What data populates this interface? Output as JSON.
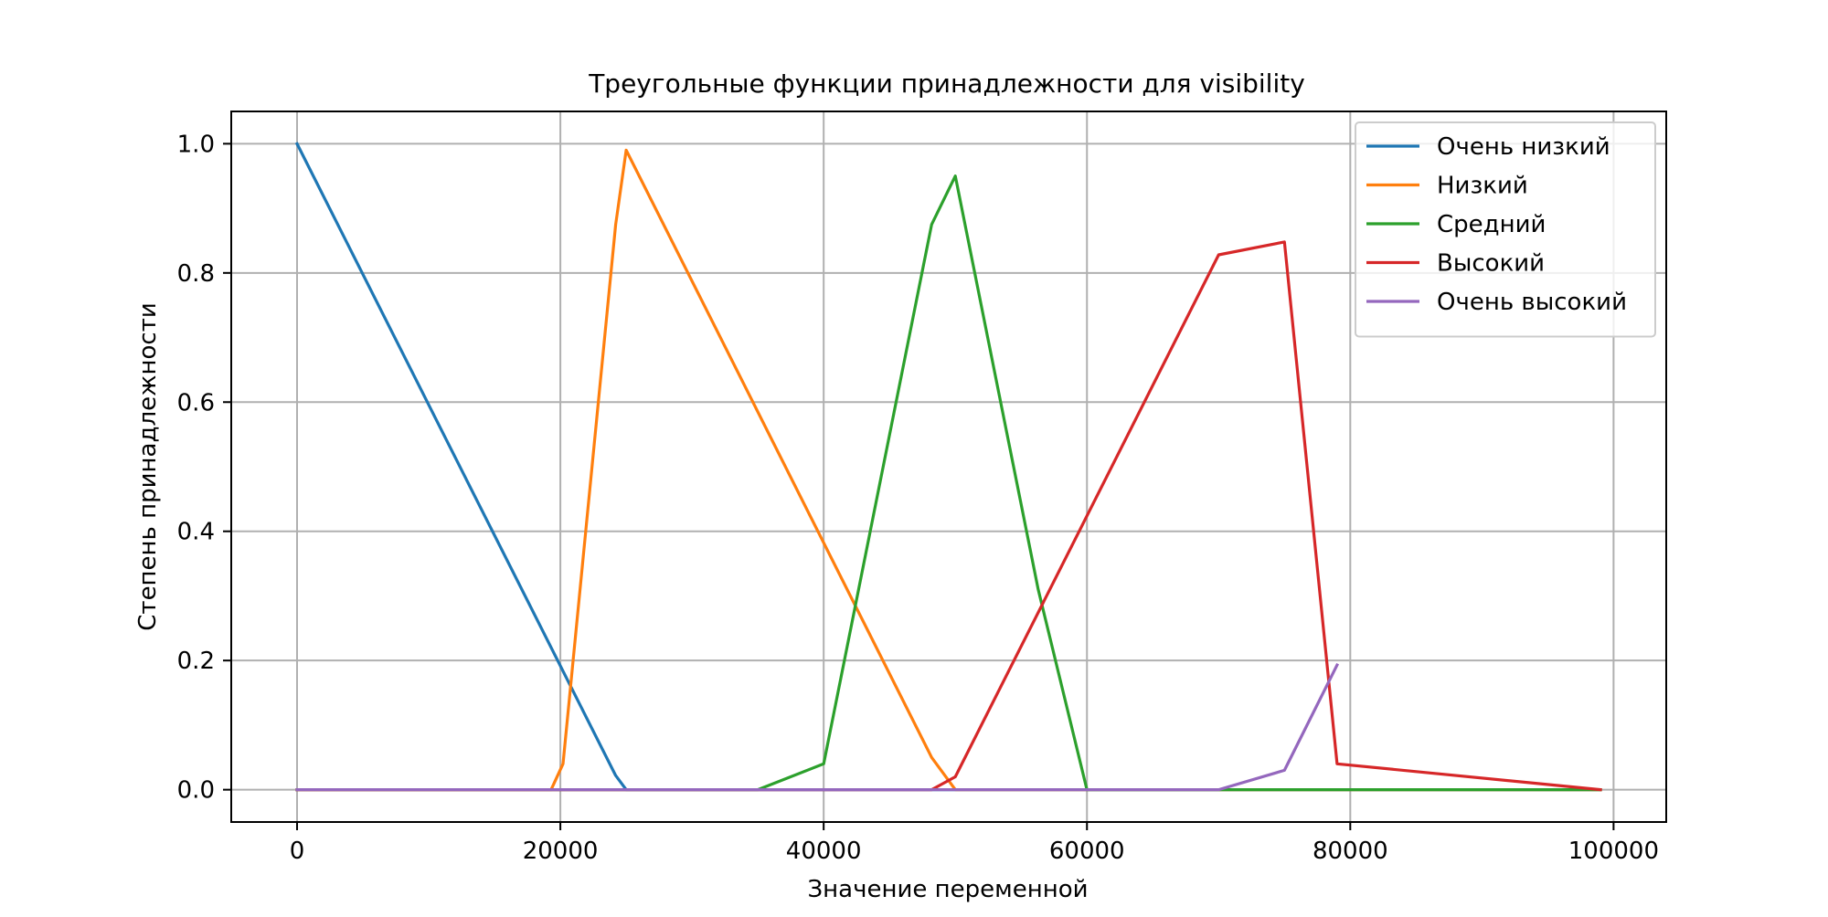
{
  "chart_data": {
    "type": "line",
    "title": "Треугольные функции принадлежности для visibility",
    "xlabel": "Значение переменной",
    "ylabel": "Степень принадлежности",
    "xlim": [
      -5000,
      104000
    ],
    "ylim": [
      -0.05,
      1.05
    ],
    "xticks": [
      0,
      20000,
      40000,
      60000,
      80000,
      100000
    ],
    "xtick_labels": [
      "0",
      "20000",
      "40000",
      "60000",
      "80000",
      "100000"
    ],
    "yticks": [
      0.0,
      0.2,
      0.4,
      0.6,
      0.8,
      1.0
    ],
    "ytick_labels": [
      "0.0",
      "0.2",
      "0.4",
      "0.6",
      "0.8",
      "1.0"
    ],
    "grid": true,
    "legend_position": "top-right",
    "series": [
      {
        "name": "Очень низкий",
        "color": "#1f77b4",
        "x": [
          0,
          24200,
          25000,
          99000
        ],
        "y": [
          1.0,
          0.022,
          0.0,
          0.0
        ]
      },
      {
        "name": "Низкий",
        "color": "#ff7f0e",
        "x": [
          0,
          19300,
          20200,
          24200,
          25000,
          48200,
          50000,
          99000
        ],
        "y": [
          0.0,
          0.0,
          0.04,
          0.875,
          0.99,
          0.05,
          0.0,
          0.0
        ]
      },
      {
        "name": "Средний",
        "color": "#2ca02c",
        "x": [
          0,
          35000,
          40000,
          48200,
          50000,
          56300,
          60000,
          99000
        ],
        "y": [
          0.0,
          0.0,
          0.04,
          0.875,
          0.95,
          0.31,
          0.0,
          0.0
        ]
      },
      {
        "name": "Высокий",
        "color": "#d62728",
        "x": [
          0,
          48200,
          50000,
          70000,
          75000,
          79000,
          99000
        ],
        "y": [
          0.0,
          0.0,
          0.02,
          0.828,
          0.848,
          0.04,
          0.0
        ]
      },
      {
        "name": "Очень высокий",
        "color": "#9467bd",
        "x": [
          0,
          70000,
          75000,
          79000
        ],
        "y": [
          0.0,
          0.0,
          0.03,
          0.193
        ]
      }
    ]
  }
}
